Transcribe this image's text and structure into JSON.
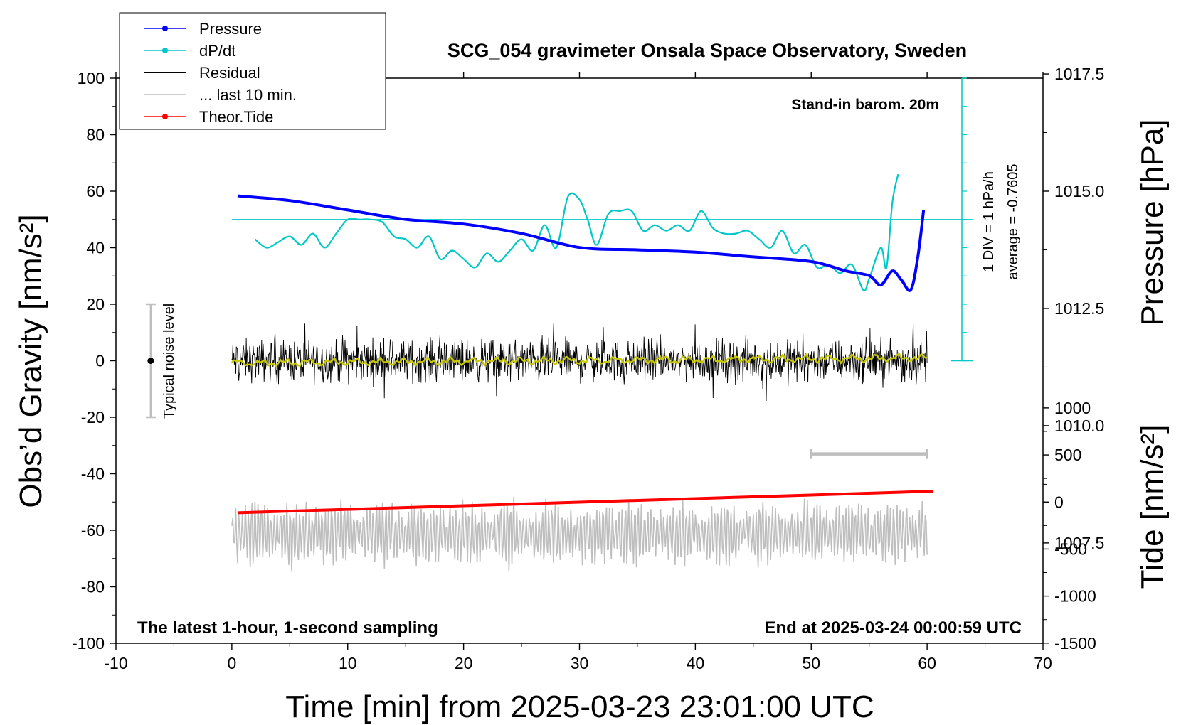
{
  "chart_data": {
    "type": "line",
    "title": "SCG_054 gravimeter Onsala Space Observatory, Sweden",
    "annotations": {
      "standin": "Stand-in barom. 20m",
      "sampling": "The latest 1-hour, 1-second sampling",
      "end": "End at 2025-03-24 00:00:59 UTC",
      "div": "1 DIV = 1 hPa/h",
      "average": "average = -0.7605",
      "noise": "Typical noise level"
    },
    "xlabel": "Time [min] from 2025-03-23 23:01:00 UTC",
    "ylabel": "Obs’d Gravity [nm/s²]",
    "y2label_pressure": "Pressure [hPa]",
    "y2label_tide": "Tide [nm/s²]",
    "xlim": [
      -10,
      70
    ],
    "ylim": [
      -100,
      100
    ],
    "x_ticks": [
      "-10",
      "0",
      "10",
      "20",
      "30",
      "40",
      "50",
      "60",
      "70"
    ],
    "y_ticks": [
      "-100",
      "-80",
      "-60",
      "-40",
      "-20",
      "0",
      "20",
      "40",
      "60",
      "80",
      "100"
    ],
    "pressure_ticks": [
      "1007.5",
      "1010.0",
      "1012.5",
      "1015.0",
      "1017.5"
    ],
    "tide_ticks": [
      "-1500",
      "-1000",
      "-500",
      "0",
      "500",
      "1000"
    ],
    "legend": [
      {
        "label": "Pressure",
        "color": "#0000ff",
        "marker": true
      },
      {
        "label": "dP/dt",
        "color": "#00c8c8",
        "marker": true
      },
      {
        "label": "Residual",
        "color": "#000000",
        "marker": false
      },
      {
        "label": "... last 10 min.",
        "color": "#bebebe",
        "marker": false
      },
      {
        "label": "Theor.Tide",
        "color": "#ff0000",
        "marker": true
      }
    ],
    "series": {
      "pressure": {
        "name": "Pressure",
        "color": "#0000ff",
        "x": [
          0.5,
          5,
          10,
          15,
          20,
          25,
          30,
          35,
          40,
          45,
          50,
          53,
          55,
          56,
          57,
          57.8,
          58.6,
          59.2,
          59.7
        ],
        "y": [
          1014.9,
          1014.8,
          1014.6,
          1014.4,
          1014.3,
          1014.1,
          1013.8,
          1013.75,
          1013.7,
          1013.6,
          1013.5,
          1013.3,
          1013.2,
          1013.0,
          1013.3,
          1013.1,
          1012.9,
          1013.6,
          1014.6
        ]
      },
      "dpdt": {
        "name": "dP/dt",
        "color": "#00c8c8",
        "zero_level": 50,
        "x": [
          2,
          3,
          4,
          5,
          6,
          7,
          8,
          9,
          10,
          11,
          12,
          13,
          14,
          15,
          16,
          17,
          18,
          19,
          20,
          21,
          22,
          23,
          24,
          25,
          26,
          27,
          28,
          29,
          30,
          30.7,
          31.5,
          32.5,
          33.5,
          34.5,
          35.5,
          36.5,
          37.5,
          38.5,
          39.5,
          40.5,
          41.5,
          42.5,
          43.5,
          44.5,
          45.5,
          46.5,
          47.5,
          48.5,
          49.5,
          50.5,
          51.5,
          52.5,
          53.5,
          54.5,
          55,
          56,
          56.5,
          57,
          57.5
        ],
        "y": [
          43,
          40,
          42,
          44,
          41,
          45,
          40,
          45,
          50,
          50,
          50,
          49,
          44,
          43,
          40,
          44,
          36,
          39,
          36,
          33,
          38,
          35,
          39,
          43,
          39,
          48,
          40,
          58,
          57,
          50,
          41,
          52,
          53,
          53,
          46,
          48,
          46,
          48,
          46,
          53,
          47,
          45,
          45,
          46,
          43,
          40,
          46,
          38,
          41,
          33,
          34,
          31,
          34,
          25,
          29,
          40,
          33,
          56,
          66
        ]
      },
      "residual": {
        "name": "Residual",
        "color": "#000000",
        "x_start": 0,
        "x_end": 60,
        "mean": 0,
        "envelope": [
          -13,
          13
        ]
      },
      "residual_smooth": {
        "name": "Residual (smoothed)",
        "color": "#c8c800",
        "x_start": 0,
        "x_end": 60,
        "mean": 0
      },
      "last10": {
        "name": "... last 10 min.",
        "color": "#bebebe",
        "x_start": 0,
        "x_end": 60,
        "mean": -61,
        "envelope": [
          -77,
          -47
        ]
      },
      "tide": {
        "name": "Theor.Tide",
        "color": "#ff0000",
        "x": [
          0.5,
          60.5
        ],
        "y": [
          -53.8,
          -46.2
        ]
      },
      "noise_marker": {
        "x": -7,
        "center": 0,
        "range": [
          -20,
          20
        ]
      },
      "scale_bar": {
        "x": [
          50,
          60
        ],
        "y": -33
      }
    }
  }
}
